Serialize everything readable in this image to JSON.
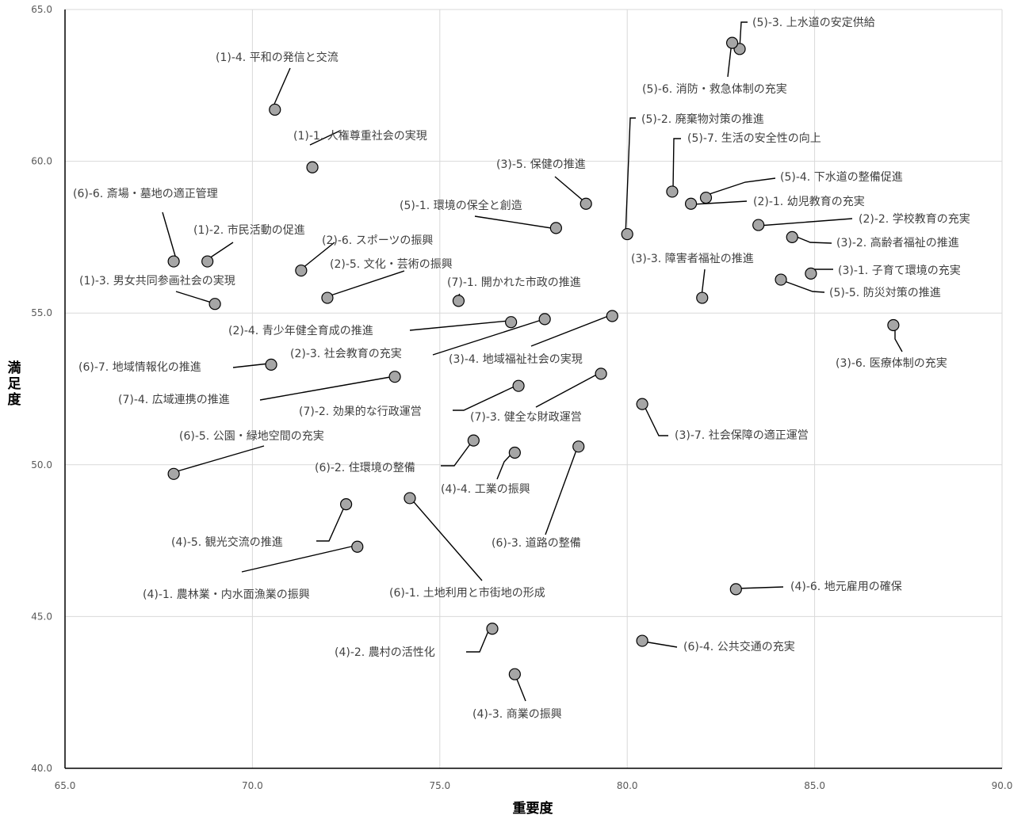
{
  "chart_data": {
    "type": "scatter",
    "xlabel": "重要度",
    "ylabel": "満足度",
    "xlim": [
      65.0,
      90.0
    ],
    "ylim": [
      40.0,
      65.0
    ],
    "xticks": [
      "65.0",
      "70.0",
      "75.0",
      "80.0",
      "85.0",
      "90.0"
    ],
    "yticks": [
      "40.0",
      "45.0",
      "50.0",
      "55.0",
      "60.0",
      "65.0"
    ],
    "grid": true,
    "marker_color": "#a6a6a6",
    "marker_edge": "#000000",
    "gridline_color": "#d9d9d9",
    "points": [
      {
        "label": "(1)-1. 人権尊重社会の実現",
        "x": 71.6,
        "y": 59.8
      },
      {
        "label": "(1)-2. 市民活動の促進",
        "x": 68.8,
        "y": 56.7
      },
      {
        "label": "(1)-3. 男女共同参画社会の実現",
        "x": 69.0,
        "y": 55.3
      },
      {
        "label": "(1)-4. 平和の発信と交流",
        "x": 70.6,
        "y": 61.7
      },
      {
        "label": "(2)-1. 幼児教育の充実",
        "x": 81.7,
        "y": 58.6
      },
      {
        "label": "(2)-2. 学校教育の充実",
        "x": 83.5,
        "y": 57.9
      },
      {
        "label": "(2)-3. 社会教育の充実",
        "x": 77.8,
        "y": 54.8
      },
      {
        "label": "(2)-4. 青少年健全育成の推進",
        "x": 76.9,
        "y": 54.7
      },
      {
        "label": "(2)-5. 文化・芸術の振興",
        "x": 72.0,
        "y": 55.5
      },
      {
        "label": "(2)-6. スポーツの振興",
        "x": 71.3,
        "y": 56.4
      },
      {
        "label": "(3)-1. 子育て環境の充実",
        "x": 84.9,
        "y": 56.3
      },
      {
        "label": "(3)-2. 高齢者福祉の推進",
        "x": 84.4,
        "y": 57.5
      },
      {
        "label": "(3)-3. 障害者福祉の推進",
        "x": 82.0,
        "y": 55.5
      },
      {
        "label": "(3)-4. 地域福祉社会の実現",
        "x": 79.6,
        "y": 54.9
      },
      {
        "label": "(3)-5. 保健の推進",
        "x": 78.9,
        "y": 58.6
      },
      {
        "label": "(3)-6. 医療体制の充実",
        "x": 87.1,
        "y": 54.6
      },
      {
        "label": "(3)-7. 社会保障の適正運営",
        "x": 80.4,
        "y": 52.0
      },
      {
        "label": "(4)-1. 農林業・内水面漁業の振興",
        "x": 72.8,
        "y": 47.3
      },
      {
        "label": "(4)-2. 農村の活性化",
        "x": 76.4,
        "y": 44.6
      },
      {
        "label": "(4)-3. 商業の振興",
        "x": 77.0,
        "y": 43.1
      },
      {
        "label": "(4)-4. 工業の振興",
        "x": 77.0,
        "y": 50.4
      },
      {
        "label": "(4)-5. 観光交流の推進",
        "x": 72.5,
        "y": 48.7
      },
      {
        "label": "(4)-6. 地元雇用の確保",
        "x": 82.9,
        "y": 45.9
      },
      {
        "label": "(5)-1. 環境の保全と創造",
        "x": 78.1,
        "y": 57.8
      },
      {
        "label": "(5)-2. 廃棄物対策の推進",
        "x": 80.0,
        "y": 57.6
      },
      {
        "label": "(5)-3. 上水道の安定供給",
        "x": 83.0,
        "y": 63.7
      },
      {
        "label": "(5)-4. 下水道の整備促進",
        "x": 82.1,
        "y": 58.8
      },
      {
        "label": "(5)-5. 防災対策の推進",
        "x": 84.1,
        "y": 56.1
      },
      {
        "label": "(5)-6. 消防・救急体制の充実",
        "x": 82.8,
        "y": 63.9
      },
      {
        "label": "(5)-7. 生活の安全性の向上",
        "x": 81.2,
        "y": 59.0
      },
      {
        "label": "(6)-1. 土地利用と市街地の形成",
        "x": 74.2,
        "y": 48.9
      },
      {
        "label": "(6)-2. 住環境の整備",
        "x": 75.9,
        "y": 50.8
      },
      {
        "label": "(6)-3. 道路の整備",
        "x": 78.7,
        "y": 50.6
      },
      {
        "label": "(6)-4. 公共交通の充実",
        "x": 80.4,
        "y": 44.2
      },
      {
        "label": "(6)-5. 公園・緑地空間の充実",
        "x": 67.9,
        "y": 49.7
      },
      {
        "label": "(6)-6. 斎場・墓地の適正管理",
        "x": 67.9,
        "y": 56.7
      },
      {
        "label": "(6)-7. 地域情報化の推進",
        "x": 70.5,
        "y": 53.3
      },
      {
        "label": "(7)-1. 開かれた市政の推進",
        "x": 75.5,
        "y": 55.4
      },
      {
        "label": "(7)-2. 効果的な行政運営",
        "x": 77.1,
        "y": 52.6
      },
      {
        "label": "(7)-3. 健全な財政運営",
        "x": 79.3,
        "y": 53.0
      },
      {
        "label": "(7)-4. 広域連携の推進",
        "x": 73.8,
        "y": 52.9
      }
    ]
  }
}
